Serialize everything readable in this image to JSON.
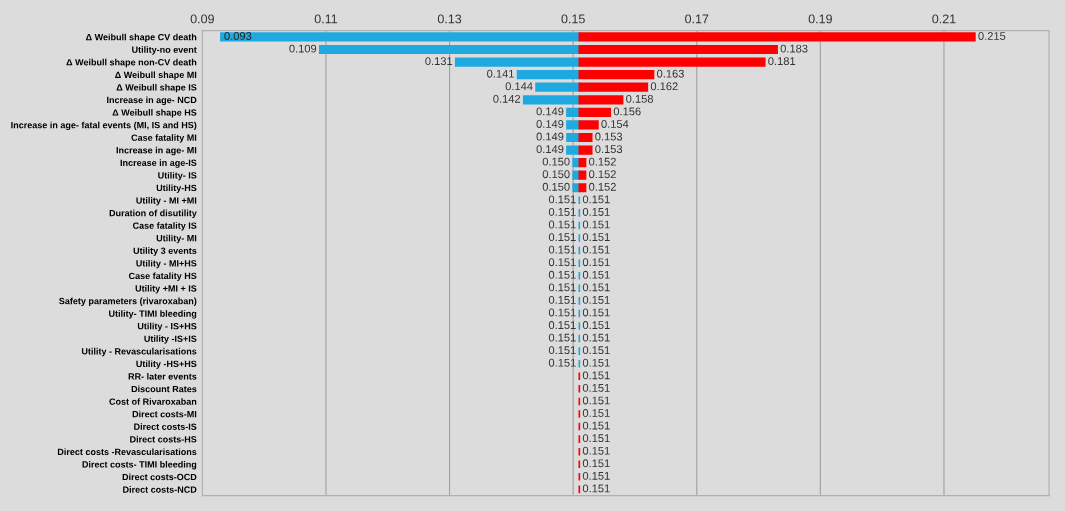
{
  "chart_data": {
    "type": "bar",
    "orientation": "horizontal",
    "grid": "x",
    "legend": false,
    "categories": [
      "Δ Weibull shape CV death",
      "Utility-no event",
      "Δ Weibull shape non-CV death",
      "Δ Weibull shape MI",
      "Δ Weibull shape IS",
      "Increase in age- NCD",
      "Δ Weibull shape HS",
      "Increase in age- fatal events (MI, IS and HS)",
      "Case fatality MI",
      "Increase in age- MI",
      "Increase in age-IS",
      "Utility- IS",
      "Utility-HS",
      "Utility - MI +MI",
      "Duration of disutility",
      "Case fatality IS",
      "Utility- MI",
      "Utility 3 events",
      "Utility - MI+HS",
      "Case fatality HS",
      "Utility +MI + IS",
      "Safety parameters (rivaroxaban)",
      "Utility- TIMI bleeding",
      "Utility - IS+HS",
      "Utility -IS+IS",
      "Utility - Revascularisations",
      "Utility -HS+HS",
      "RR- later events",
      "Discount Rates",
      "Cost of Rivaroxaban",
      "Direct costs-MI",
      "Direct costs-IS",
      "Direct costs-HS",
      "Direct costs -Revascularisations",
      "Direct costs- TIMI bleeding",
      "Direct costs-OCD",
      "Direct costs-NCD"
    ],
    "xlim": [
      0.09,
      0.227
    ],
    "xticks": [
      {
        "value": 0.09,
        "label": "0.09"
      },
      {
        "value": 0.11,
        "label": "0.11"
      },
      {
        "value": 0.13,
        "label": "0.13"
      },
      {
        "value": 0.15,
        "label": "0.15"
      },
      {
        "value": 0.17,
        "label": "0.17"
      },
      {
        "value": 0.19,
        "label": "0.19"
      },
      {
        "value": 0.21,
        "label": "0.21"
      }
    ],
    "series": [
      {
        "color": "#1fa9e1",
        "base": [
          0.093,
          0.109,
          0.131,
          0.141,
          0.144,
          0.142,
          0.149,
          0.149,
          0.149,
          0.149,
          0.15,
          0.15,
          0.15,
          0.151,
          0.151,
          0.151,
          0.151,
          0.151,
          0.151,
          0.151,
          0.151,
          0.151,
          0.151,
          0.151,
          0.151,
          0.151,
          0.151,
          null,
          null,
          null,
          null,
          null,
          null,
          null,
          null,
          null,
          null
        ],
        "values": [
          0.058,
          0.042,
          0.02,
          0.01,
          0.007,
          0.009,
          0.002,
          0.002,
          0.002,
          0.002,
          0.001,
          0.001,
          0.001,
          0,
          0,
          0,
          0,
          0,
          0,
          0,
          0,
          0,
          0,
          0,
          0,
          0,
          0,
          null,
          null,
          null,
          null,
          null,
          null,
          null,
          null,
          null,
          null
        ]
      },
      {
        "color": "#ff0000",
        "base": [
          0.151,
          0.151,
          0.151,
          0.151,
          0.151,
          0.151,
          0.151,
          0.151,
          0.151,
          0.151,
          0.151,
          0.151,
          0.151,
          null,
          null,
          null,
          null,
          null,
          null,
          null,
          null,
          null,
          null,
          null,
          null,
          null,
          null,
          0.151,
          0.151,
          0.151,
          0.151,
          0.151,
          0.151,
          0.151,
          0.151,
          0.151,
          0.151
        ],
        "values": [
          0.064,
          0.032,
          0.03,
          0.012,
          0.011,
          0.007,
          0.005,
          0.003,
          0.002,
          0.002,
          0.001,
          0.001,
          0.001,
          null,
          null,
          null,
          null,
          null,
          null,
          null,
          null,
          null,
          null,
          null,
          null,
          null,
          null,
          0,
          0,
          0,
          0,
          0,
          0,
          0,
          0,
          0,
          0
        ]
      }
    ],
    "annotations": [
      {
        "text": "0.093",
        "x": 0.093,
        "y": "Δ Weibull shape CV death"
      },
      {
        "text": "0.215",
        "x": 0.215,
        "y": "Δ Weibull shape CV death"
      },
      {
        "text": "0.109",
        "x": 0.109,
        "y": "Utility-no event"
      },
      {
        "text": "0.183",
        "x": 0.183,
        "y": "Utility-no event"
      },
      {
        "text": "0.131",
        "x": 0.131,
        "y": "Δ Weibull shape non-CV death"
      },
      {
        "text": "0.181",
        "x": 0.181,
        "y": "Δ Weibull shape non-CV death"
      },
      {
        "text": "0.141",
        "x": 0.141,
        "y": "Δ Weibull shape MI"
      },
      {
        "text": "0.163",
        "x": 0.163,
        "y": "Δ Weibull shape MI"
      },
      {
        "text": "0.144",
        "x": 0.144,
        "y": "Δ Weibull shape IS"
      },
      {
        "text": "0.162",
        "x": 0.162,
        "y": "Δ Weibull shape IS"
      },
      {
        "text": "0.142",
        "x": 0.142,
        "y": "Increase in age- NCD"
      },
      {
        "text": "0.158",
        "x": 0.158,
        "y": "Increase in age- NCD"
      },
      {
        "text": "0.149",
        "x": 0.149,
        "y": "Δ Weibull shape HS"
      },
      {
        "text": "0.156",
        "x": 0.156,
        "y": "Δ Weibull shape HS"
      },
      {
        "text": "0.149",
        "x": 0.149,
        "y": "Increase in age- fatal events (MI, IS and HS)"
      },
      {
        "text": "0.154",
        "x": 0.154,
        "y": "Increase in age- fatal events (MI, IS and HS)"
      },
      {
        "text": "0.149",
        "x": 0.149,
        "y": "Case fatality MI"
      },
      {
        "text": "0.153",
        "x": 0.153,
        "y": "Case fatality MI"
      },
      {
        "text": "0.149",
        "x": 0.149,
        "y": "Increase in age- MI"
      },
      {
        "text": "0.153",
        "x": 0.153,
        "y": "Increase in age- MI"
      },
      {
        "text": "0.150",
        "x": 0.15,
        "y": "Increase in age-IS"
      },
      {
        "text": "0.152",
        "x": 0.152,
        "y": "Increase in age-IS"
      },
      {
        "text": "0.150",
        "x": 0.15,
        "y": "Utility- IS"
      },
      {
        "text": "0.152",
        "x": 0.152,
        "y": "Utility- IS"
      },
      {
        "text": "0.150",
        "x": 0.15,
        "y": "Utility-HS"
      },
      {
        "text": "0.152",
        "x": 0.152,
        "y": "Utility-HS"
      },
      {
        "text": "0.151",
        "x": 0.151,
        "y": "Utility - MI +MI"
      },
      {
        "text": "0.151",
        "x": 0.151,
        "y": "Utility - MI +MI"
      },
      {
        "text": "0.151",
        "x": 0.151,
        "y": "Duration of disutility"
      },
      {
        "text": "0.151",
        "x": 0.151,
        "y": "Duration of disutility"
      },
      {
        "text": "0.151",
        "x": 0.151,
        "y": "Case fatality IS"
      },
      {
        "text": "0.151",
        "x": 0.151,
        "y": "Case fatality IS"
      },
      {
        "text": "0.151",
        "x": 0.151,
        "y": "Utility- MI"
      },
      {
        "text": "0.151",
        "x": 0.151,
        "y": "Utility- MI"
      },
      {
        "text": "0.151",
        "x": 0.151,
        "y": "Utility 3 events"
      },
      {
        "text": "0.151",
        "x": 0.151,
        "y": "Utility 3 events"
      },
      {
        "text": "0.151",
        "x": 0.151,
        "y": "Utility - MI+HS"
      },
      {
        "text": "0.151",
        "x": 0.151,
        "y": "Utility - MI+HS"
      },
      {
        "text": "0.151",
        "x": 0.151,
        "y": "Case fatality HS"
      },
      {
        "text": "0.151",
        "x": 0.151,
        "y": "Case fatality HS"
      },
      {
        "text": "0.151",
        "x": 0.151,
        "y": "Utility +MI + IS"
      },
      {
        "text": "0.151",
        "x": 0.151,
        "y": "Utility +MI + IS"
      },
      {
        "text": "0.151",
        "x": 0.151,
        "y": "Safety parameters (rivaroxaban)"
      },
      {
        "text": "0.151",
        "x": 0.151,
        "y": "Safety parameters (rivaroxaban)"
      },
      {
        "text": "0.151",
        "x": 0.151,
        "y": "Utility- TIMI bleeding"
      },
      {
        "text": "0.151",
        "x": 0.151,
        "y": "Utility- TIMI bleeding"
      },
      {
        "text": "0.151",
        "x": 0.151,
        "y": "Utility - IS+HS"
      },
      {
        "text": "0.151",
        "x": 0.151,
        "y": "Utility - IS+HS"
      },
      {
        "text": "0.151",
        "x": 0.151,
        "y": "Utility -IS+IS"
      },
      {
        "text": "0.151",
        "x": 0.151,
        "y": "Utility -IS+IS"
      },
      {
        "text": "0.151",
        "x": 0.151,
        "y": "Utility - Revascularisations"
      },
      {
        "text": "0.151",
        "x": 0.151,
        "y": "Utility - Revascularisations"
      },
      {
        "text": "0.151",
        "x": 0.151,
        "y": "Utility -HS+HS"
      },
      {
        "text": "0.151",
        "x": 0.151,
        "y": "Utility -HS+HS"
      },
      {
        "text": "0.151",
        "x": 0.151,
        "y": "RR- later events"
      },
      {
        "text": "0.151",
        "x": 0.151,
        "y": "Discount Rates"
      },
      {
        "text": "0.151",
        "x": 0.151,
        "y": "Cost of Rivaroxaban"
      },
      {
        "text": "0.151",
        "x": 0.151,
        "y": "Direct costs-MI"
      },
      {
        "text": "0.151",
        "x": 0.151,
        "y": "Direct costs-IS"
      },
      {
        "text": "0.151",
        "x": 0.151,
        "y": "Direct costs-HS"
      },
      {
        "text": "0.151",
        "x": 0.151,
        "y": "Direct costs -Revascularisations"
      },
      {
        "text": "0.151",
        "x": 0.151,
        "y": "Direct costs- TIMI bleeding"
      },
      {
        "text": "0.151",
        "x": 0.151,
        "y": "Direct costs-OCD"
      },
      {
        "text": "0.151",
        "x": 0.151,
        "y": "Direct costs-NCD"
      }
    ]
  }
}
